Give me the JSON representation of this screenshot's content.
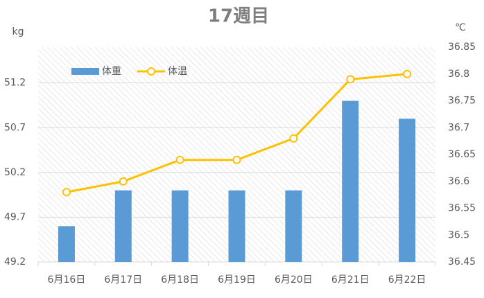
{
  "chart_data": {
    "type": "bar_line",
    "title": "17週目",
    "y_label": "kg",
    "y2_label": "℃",
    "categories": [
      "6月16日",
      "6月17日",
      "6月18日",
      "6月19日",
      "6月20日",
      "6月21日",
      "6月22日"
    ],
    "series": [
      {
        "name": "体重",
        "type": "bar",
        "color": "#5b9bd5",
        "values": [
          49.6,
          50.0,
          50.0,
          50.0,
          50.0,
          51.0,
          50.8
        ]
      },
      {
        "name": "体温",
        "type": "line",
        "axis": "y2",
        "color": "#ffc000",
        "values": [
          36.58,
          36.6,
          36.64,
          36.64,
          36.68,
          36.79,
          36.8
        ]
      }
    ],
    "ylim": [
      49.2,
      51.6
    ],
    "yticks": [
      49.2,
      49.7,
      50.2,
      50.7,
      51.2
    ],
    "y2lim": [
      36.45,
      36.85
    ],
    "y2ticks": [
      36.45,
      36.5,
      36.55,
      36.6,
      36.65,
      36.7,
      36.75,
      36.8,
      36.85
    ],
    "grid": true,
    "legend": "top-left"
  }
}
